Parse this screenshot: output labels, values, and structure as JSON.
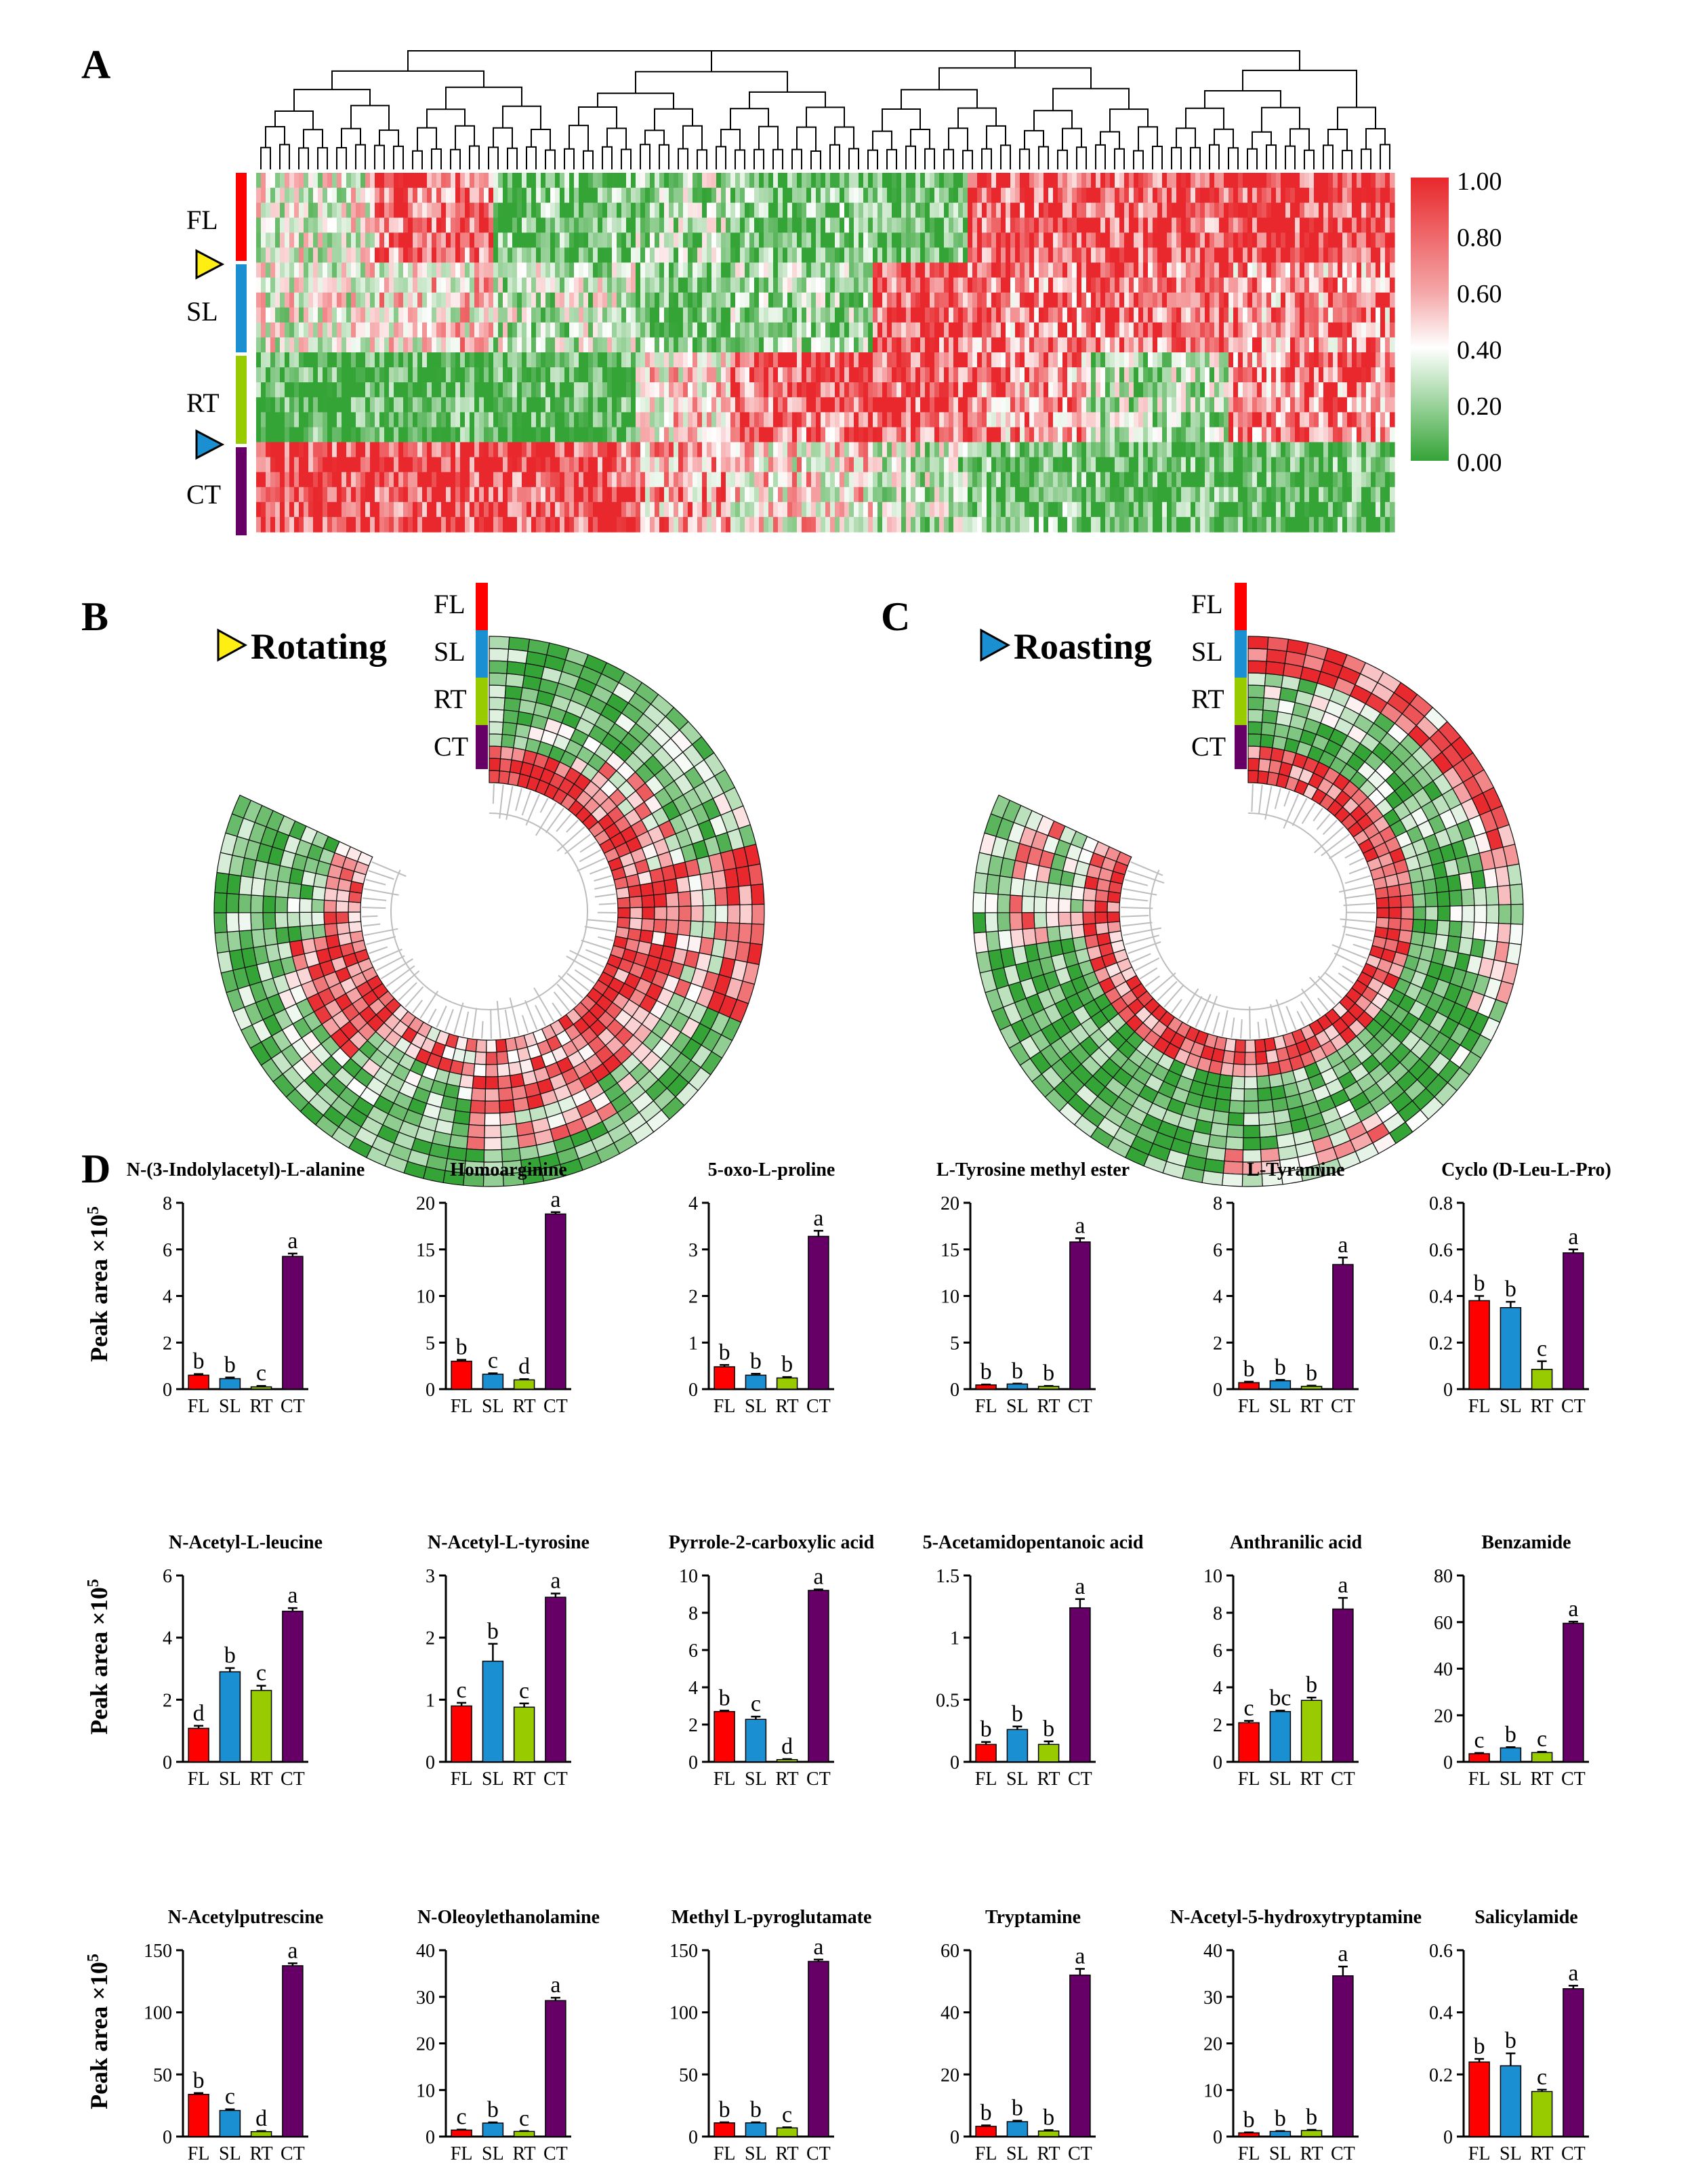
{
  "panels": {
    "a": "A",
    "b": "B",
    "c": "C",
    "d": "D"
  },
  "groups": [
    "FL",
    "SL",
    "RT",
    "CT"
  ],
  "colors": {
    "FL": "#ff0000",
    "SL": "#1a8fd1",
    "RT": "#99cc00",
    "CT": "#660066",
    "high": "#e8282c",
    "mid": "#ffffff",
    "low": "#35a437",
    "yellow_marker": "#ffee11",
    "blue_marker": "#1a8fd1"
  },
  "heatmap": {
    "colorbar_ticks": [
      "1.00",
      "0.80",
      "0.60",
      "0.40",
      "0.20",
      "0.00"
    ]
  },
  "circular": {
    "rotating_title": "Rotating",
    "roasting_title": "Roasting"
  },
  "ylabel": "Peak area ×10",
  "ylabel_exp": "5",
  "chart_data": [
    {
      "type": "bar",
      "title": "N-(3-Indolylacetyl)-L-alanine",
      "categories": [
        "FL",
        "SL",
        "RT",
        "CT"
      ],
      "values": [
        0.6,
        0.45,
        0.1,
        5.7
      ],
      "errors": [
        0.05,
        0.05,
        0.04,
        0.12
      ],
      "letters": [
        "b",
        "b",
        "c",
        "a"
      ],
      "ylim": [
        0,
        8
      ],
      "yticks": [
        "0",
        "2",
        "4",
        "6",
        "8"
      ]
    },
    {
      "type": "bar",
      "title": "Homoarginine",
      "categories": [
        "FL",
        "SL",
        "RT",
        "CT"
      ],
      "values": [
        3.0,
        1.6,
        1.0,
        18.8
      ],
      "errors": [
        0.15,
        0.1,
        0.08,
        0.2
      ],
      "letters": [
        "b",
        "c",
        "d",
        "a"
      ],
      "ylim": [
        0,
        20
      ],
      "yticks": [
        "0",
        "5",
        "10",
        "15",
        "20"
      ]
    },
    {
      "type": "bar",
      "title": "5-oxo-L-proline",
      "categories": [
        "FL",
        "SL",
        "RT",
        "CT"
      ],
      "values": [
        0.48,
        0.3,
        0.24,
        3.28
      ],
      "errors": [
        0.04,
        0.03,
        0.02,
        0.12
      ],
      "letters": [
        "b",
        "b",
        "b",
        "a"
      ],
      "ylim": [
        0,
        4
      ],
      "yticks": [
        "0",
        "1",
        "2",
        "3",
        "4"
      ]
    },
    {
      "type": "bar",
      "title": "L-Tyrosine methyl ester",
      "categories": [
        "FL",
        "SL",
        "RT",
        "CT"
      ],
      "values": [
        0.45,
        0.55,
        0.3,
        15.8
      ],
      "errors": [
        0.05,
        0.05,
        0.05,
        0.4
      ],
      "letters": [
        "b",
        "b",
        "b",
        "a"
      ],
      "ylim": [
        0,
        20
      ],
      "yticks": [
        "0",
        "5",
        "10",
        "15",
        "20"
      ]
    },
    {
      "type": "bar",
      "title": "L-Tyramine",
      "categories": [
        "FL",
        "SL",
        "RT",
        "CT"
      ],
      "values": [
        0.28,
        0.36,
        0.12,
        5.35
      ],
      "errors": [
        0.04,
        0.04,
        0.03,
        0.3
      ],
      "letters": [
        "b",
        "b",
        "b",
        "a"
      ],
      "ylim": [
        0,
        8
      ],
      "yticks": [
        "0",
        "2",
        "4",
        "6",
        "8"
      ]
    },
    {
      "type": "bar",
      "title": "Cyclo (D-Leu-L-Pro)",
      "categories": [
        "FL",
        "SL",
        "RT",
        "CT"
      ],
      "values": [
        0.38,
        0.35,
        0.085,
        0.585
      ],
      "errors": [
        0.02,
        0.025,
        0.035,
        0.015
      ],
      "letters": [
        "b",
        "b",
        "c",
        "a"
      ],
      "ylim": [
        0,
        0.8
      ],
      "yticks": [
        "0",
        "0.2",
        "0.4",
        "0.6",
        "0.8"
      ]
    },
    {
      "type": "bar",
      "title": "N-Acetyl-L-leucine",
      "categories": [
        "FL",
        "SL",
        "RT",
        "CT"
      ],
      "values": [
        1.08,
        2.9,
        2.3,
        4.85
      ],
      "errors": [
        0.08,
        0.12,
        0.15,
        0.1
      ],
      "letters": [
        "d",
        "b",
        "c",
        "a"
      ],
      "ylim": [
        0,
        6
      ],
      "yticks": [
        "0",
        "2",
        "4",
        "6"
      ]
    },
    {
      "type": "bar",
      "title": "N-Acetyl-L-tyrosine",
      "categories": [
        "FL",
        "SL",
        "RT",
        "CT"
      ],
      "values": [
        0.9,
        1.62,
        0.88,
        2.65
      ],
      "errors": [
        0.05,
        0.28,
        0.06,
        0.06
      ],
      "letters": [
        "c",
        "b",
        "c",
        "a"
      ],
      "ylim": [
        0,
        3
      ],
      "yticks": [
        "0",
        "1",
        "2",
        "3"
      ]
    },
    {
      "type": "bar",
      "title": "Pyrrole-2-carboxylic acid",
      "categories": [
        "FL",
        "SL",
        "RT",
        "CT"
      ],
      "values": [
        2.7,
        2.28,
        0.12,
        9.2
      ],
      "errors": [
        0.05,
        0.15,
        0.03,
        0.05
      ],
      "letters": [
        "b",
        "c",
        "d",
        "a"
      ],
      "ylim": [
        0,
        10
      ],
      "yticks": [
        "0",
        "2",
        "4",
        "6",
        "8",
        "10"
      ]
    },
    {
      "type": "bar",
      "title": "5-Acetamidopentanoic acid",
      "categories": [
        "FL",
        "SL",
        "RT",
        "CT"
      ],
      "values": [
        0.14,
        0.26,
        0.14,
        1.24
      ],
      "errors": [
        0.02,
        0.025,
        0.025,
        0.07
      ],
      "letters": [
        "b",
        "b",
        "b",
        "a"
      ],
      "ylim": [
        0,
        1.5
      ],
      "yticks": [
        "0",
        "0.5",
        "1",
        "1.5"
      ]
    },
    {
      "type": "bar",
      "title": "Anthranilic acid",
      "categories": [
        "FL",
        "SL",
        "RT",
        "CT"
      ],
      "values": [
        2.1,
        2.7,
        3.3,
        8.2
      ],
      "errors": [
        0.1,
        0.05,
        0.15,
        0.6
      ],
      "letters": [
        "c",
        "bc",
        "b",
        "a"
      ],
      "ylim": [
        0,
        10
      ],
      "yticks": [
        "0",
        "2",
        "4",
        "6",
        "8",
        "10"
      ]
    },
    {
      "type": "bar",
      "title": "Benzamide",
      "categories": [
        "FL",
        "SL",
        "RT",
        "CT"
      ],
      "values": [
        3.5,
        6.0,
        4.0,
        59.5
      ],
      "errors": [
        0.3,
        0.3,
        0.3,
        0.7
      ],
      "letters": [
        "c",
        "b",
        "c",
        "a"
      ],
      "ylim": [
        0,
        80
      ],
      "yticks": [
        "0",
        "20",
        "40",
        "60",
        "80"
      ]
    },
    {
      "type": "bar",
      "title": "N-Acetylputrescine",
      "categories": [
        "FL",
        "SL",
        "RT",
        "CT"
      ],
      "values": [
        34,
        21,
        4,
        137.5
      ],
      "errors": [
        1.0,
        1.0,
        0.5,
        2.0
      ],
      "letters": [
        "b",
        "c",
        "d",
        "a"
      ],
      "ylim": [
        0,
        150
      ],
      "yticks": [
        "0",
        "50",
        "100",
        "150"
      ]
    },
    {
      "type": "bar",
      "title": "N-Oleoylethanolamine",
      "categories": [
        "FL",
        "SL",
        "RT",
        "CT"
      ],
      "values": [
        1.4,
        2.9,
        1.1,
        29.2
      ],
      "errors": [
        0.1,
        0.15,
        0.1,
        0.6
      ],
      "letters": [
        "c",
        "b",
        "c",
        "a"
      ],
      "ylim": [
        0,
        40
      ],
      "yticks": [
        "0",
        "10",
        "20",
        "30",
        "40"
      ]
    },
    {
      "type": "bar",
      "title": "Methyl L-pyroglutamate",
      "categories": [
        "FL",
        "SL",
        "RT",
        "CT"
      ],
      "values": [
        11,
        11,
        7,
        141
      ],
      "errors": [
        0.5,
        0.5,
        0.5,
        1.5
      ],
      "letters": [
        "b",
        "b",
        "c",
        "a"
      ],
      "ylim": [
        0,
        150
      ],
      "yticks": [
        "0",
        "50",
        "100",
        "150"
      ]
    },
    {
      "type": "bar",
      "title": "Tryptamine",
      "categories": [
        "FL",
        "SL",
        "RT",
        "CT"
      ],
      "values": [
        3.3,
        4.8,
        1.8,
        52
      ],
      "errors": [
        0.3,
        0.3,
        0.3,
        2.0
      ],
      "letters": [
        "b",
        "b",
        "b",
        "a"
      ],
      "ylim": [
        0,
        60
      ],
      "yticks": [
        "0",
        "20",
        "40",
        "60"
      ]
    },
    {
      "type": "bar",
      "title": "N-Acetyl-5-hydroxytryptamine",
      "categories": [
        "FL",
        "SL",
        "RT",
        "CT"
      ],
      "values": [
        0.8,
        1.1,
        1.3,
        34.5
      ],
      "errors": [
        0.1,
        0.1,
        0.15,
        2.0
      ],
      "letters": [
        "b",
        "b",
        "b",
        "a"
      ],
      "ylim": [
        0,
        40
      ],
      "yticks": [
        "0",
        "10",
        "20",
        "30",
        "40"
      ]
    },
    {
      "type": "bar",
      "title": "Salicylamide",
      "categories": [
        "FL",
        "SL",
        "RT",
        "CT"
      ],
      "values": [
        0.24,
        0.228,
        0.145,
        0.476
      ],
      "errors": [
        0.01,
        0.04,
        0.006,
        0.01
      ],
      "letters": [
        "b",
        "b",
        "c",
        "a"
      ],
      "ylim": [
        0,
        0.6
      ],
      "yticks": [
        "0",
        "0.2",
        "0.4",
        "0.6"
      ]
    }
  ]
}
